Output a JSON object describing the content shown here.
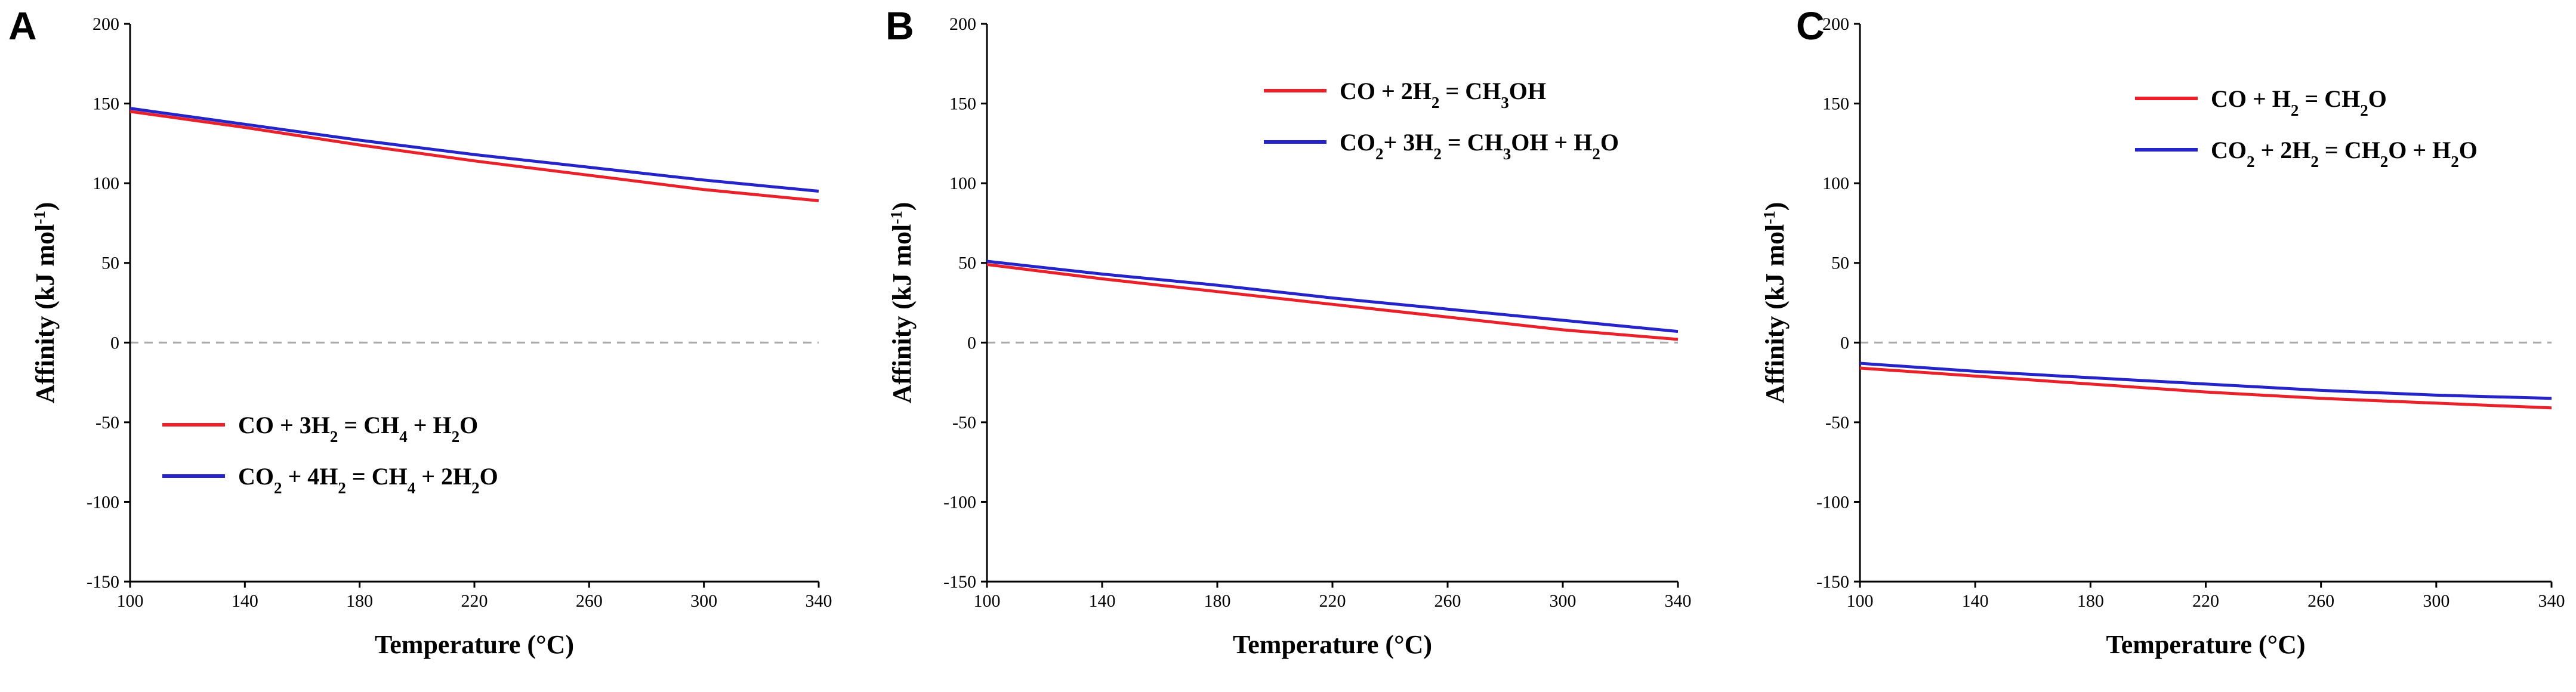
{
  "chart_data": [
    {
      "type": "line",
      "panel_label": "A",
      "xlabel": "Temperature (°C)",
      "ylabel": "Affinity (kJ mol⁻¹)",
      "xlim": [
        100,
        340
      ],
      "ylim": [
        -150,
        200
      ],
      "xticks": [
        100,
        140,
        180,
        220,
        260,
        300,
        340
      ],
      "yticks": [
        -150,
        -100,
        -50,
        0,
        50,
        100,
        150,
        200
      ],
      "reference_line": {
        "y": 0,
        "style": "dashed",
        "color": "#aaaaaa"
      },
      "legend_position": "lower-left",
      "series": [
        {
          "name": "CO + 3H₂ = CH₄ + H₂O",
          "color": "#e8212a",
          "x": [
            100,
            140,
            180,
            220,
            260,
            300,
            340
          ],
          "y": [
            145,
            135,
            124,
            114,
            105,
            96,
            89
          ]
        },
        {
          "name": "CO₂ + 4H₂ = CH₄ + 2H₂O",
          "color": "#2424c8",
          "x": [
            100,
            140,
            180,
            220,
            260,
            300,
            340
          ],
          "y": [
            147,
            137,
            127,
            118,
            110,
            102,
            95
          ]
        }
      ]
    },
    {
      "type": "line",
      "panel_label": "B",
      "xlabel": "Temperature (°C)",
      "ylabel": "Affinity (kJ mol⁻¹)",
      "xlim": [
        100,
        340
      ],
      "ylim": [
        -150,
        200
      ],
      "xticks": [
        100,
        140,
        180,
        220,
        260,
        300,
        340
      ],
      "yticks": [
        -150,
        -100,
        -50,
        0,
        50,
        100,
        150,
        200
      ],
      "reference_line": {
        "y": 0,
        "style": "dashed",
        "color": "#aaaaaa"
      },
      "legend_position": "top-center",
      "series": [
        {
          "name": "CO + 2H₂ = CH₃OH",
          "color": "#e8212a",
          "x": [
            100,
            140,
            180,
            220,
            260,
            300,
            340
          ],
          "y": [
            49,
            40,
            32,
            24,
            16,
            8,
            2
          ]
        },
        {
          "name": "CO₂+ 3H₂ = CH₃OH + H₂O",
          "color": "#2424c8",
          "x": [
            100,
            140,
            180,
            220,
            260,
            300,
            340
          ],
          "y": [
            51,
            43,
            36,
            28,
            21,
            14,
            7
          ]
        }
      ]
    },
    {
      "type": "line",
      "panel_label": "C",
      "xlabel": "Temperature (°C)",
      "ylabel": "Affinity (kJ mol⁻¹)",
      "xlim": [
        100,
        340
      ],
      "ylim": [
        -150,
        200
      ],
      "xticks": [
        100,
        140,
        180,
        220,
        260,
        300,
        340
      ],
      "yticks": [
        -150,
        -100,
        -50,
        0,
        50,
        100,
        150,
        200
      ],
      "reference_line": {
        "y": 0,
        "style": "dashed",
        "color": "#aaaaaa"
      },
      "legend_position": "top-center",
      "series": [
        {
          "name": "CO + H₂ = CH₂O",
          "color": "#e8212a",
          "x": [
            100,
            140,
            180,
            220,
            260,
            300,
            340
          ],
          "y": [
            -16,
            -21,
            -26,
            -31,
            -35,
            -38,
            -41
          ]
        },
        {
          "name": "CO₂ + 2H₂ = CH₂O + H₂O",
          "color": "#2424c8",
          "x": [
            100,
            140,
            180,
            220,
            260,
            300,
            340
          ],
          "y": [
            -13,
            -18,
            -22,
            -26,
            -30,
            -33,
            -35
          ]
        }
      ]
    }
  ]
}
